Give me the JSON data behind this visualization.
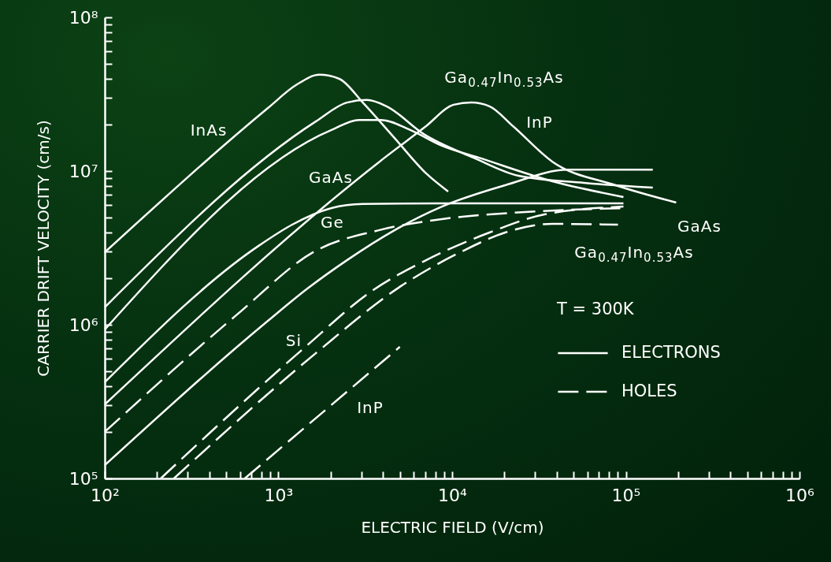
{
  "chart_data": {
    "type": "line",
    "xlabel": "ELECTRIC FIELD (V/cm)",
    "ylabel": "CARRIER DRIFT VELOCITY (cm/s)",
    "legend_title": "T = 300K",
    "legend": "bottom right",
    "log": "xy",
    "xlim": [
      100,
      1000000
    ],
    "ylim": [
      100000,
      100000000
    ],
    "xticks": [
      {
        "value": 100,
        "label": "10²"
      },
      {
        "value": 200,
        "label": null
      },
      {
        "value": 300,
        "label": null
      },
      {
        "value": 400,
        "label": null
      },
      {
        "value": 500,
        "label": null
      },
      {
        "value": 600,
        "label": null
      },
      {
        "value": 700,
        "label": null
      },
      {
        "value": 800,
        "label": null
      },
      {
        "value": 900,
        "label": null
      },
      {
        "value": 1000,
        "label": "10³"
      },
      {
        "value": 2000,
        "label": null
      },
      {
        "value": 3000,
        "label": null
      },
      {
        "value": 4000,
        "label": null
      },
      {
        "value": 5000,
        "label": null
      },
      {
        "value": 6000,
        "label": null
      },
      {
        "value": 7000,
        "label": null
      },
      {
        "value": 8000,
        "label": null
      },
      {
        "value": 9000,
        "label": null
      },
      {
        "value": 10000,
        "label": "10⁴"
      },
      {
        "value": 20000,
        "label": null
      },
      {
        "value": 30000,
        "label": null
      },
      {
        "value": 40000,
        "label": null
      },
      {
        "value": 50000,
        "label": null
      },
      {
        "value": 60000,
        "label": null
      },
      {
        "value": 70000,
        "label": null
      },
      {
        "value": 80000,
        "label": null
      },
      {
        "value": 90000,
        "label": null
      },
      {
        "value": 100000,
        "label": "10⁵"
      },
      {
        "value": 200000,
        "label": null
      },
      {
        "value": 300000,
        "label": null
      },
      {
        "value": 400000,
        "label": null
      },
      {
        "value": 500000,
        "label": null
      },
      {
        "value": 600000,
        "label": null
      },
      {
        "value": 700000,
        "label": null
      },
      {
        "value": 800000,
        "label": null
      },
      {
        "value": 900000,
        "label": null
      },
      {
        "value": 1000000,
        "label": "10⁶"
      }
    ],
    "yticks": [
      {
        "value": 100000,
        "label": "10⁵"
      },
      {
        "value": 200000,
        "label": null
      },
      {
        "value": 300000,
        "label": null
      },
      {
        "value": 400000,
        "label": null
      },
      {
        "value": 500000,
        "label": null
      },
      {
        "value": 600000,
        "label": null
      },
      {
        "value": 700000,
        "label": null
      },
      {
        "value": 800000,
        "label": null
      },
      {
        "value": 900000,
        "label": null
      },
      {
        "value": 1000000,
        "label": "10⁶"
      },
      {
        "value": 2000000,
        "label": null
      },
      {
        "value": 3000000,
        "label": null
      },
      {
        "value": 4000000,
        "label": null
      },
      {
        "value": 5000000,
        "label": null
      },
      {
        "value": 6000000,
        "label": null
      },
      {
        "value": 7000000,
        "label": null
      },
      {
        "value": 8000000,
        "label": null
      },
      {
        "value": 9000000,
        "label": null
      },
      {
        "value": 10000000,
        "label": "10⁷"
      },
      {
        "value": 20000000,
        "label": null
      },
      {
        "value": 30000000,
        "label": null
      },
      {
        "value": 40000000,
        "label": null
      },
      {
        "value": 50000000,
        "label": null
      },
      {
        "value": 60000000,
        "label": null
      },
      {
        "value": 70000000,
        "label": null
      },
      {
        "value": 80000000,
        "label": null
      },
      {
        "value": 90000000,
        "label": null
      },
      {
        "value": 100000000,
        "label": "10⁸"
      }
    ],
    "series": [
      {
        "name": "ELECTRONS",
        "color": "#ffffff",
        "line_style": "solid",
        "x": [
          100,
          870,
          1260,
          1720,
          2240,
          3060,
          4660,
          7080,
          9490
        ],
        "values": [
          2960000,
          25700000,
          36200000,
          42300000,
          39800000,
          27900000,
          16400000,
          9660000,
          7360000
        ]
      },
      {
        "color": "#ffffff",
        "line_style": "solid",
        "x": [
          100,
          1640,
          2480,
          3230,
          4190,
          6860,
          13300,
          24100,
          57400,
          143000
        ],
        "values": [
          1300000,
          21000000,
          27900000,
          29000000,
          26400000,
          17400000,
          12200000,
          9310000,
          8380000,
          7800000
        ]
      },
      {
        "color": "#ffffff",
        "line_style": "solid",
        "x": [
          100,
          2020,
          2910,
          3900,
          5740,
          8730,
          14300,
          37800,
          96900
        ],
        "values": [
          931000,
          18500000,
          21500000,
          21500000,
          18500000,
          14600000,
          12200000,
          8580000,
          6780000
        ]
      },
      {
        "color": "#ffffff",
        "line_style": "solid",
        "x": [
          100,
          790,
          1200,
          2020,
          3060,
          8730,
          96900
        ],
        "values": [
          423000,
          3330000,
          4480000,
          5740000,
          6100000,
          6170000,
          6170000
        ]
      },
      {
        "color": "#ffffff",
        "line_style": "solid",
        "x": [
          100,
          3780,
          7080,
          10200,
          12900,
          16400,
          22400,
          37800,
          87300,
          195000
        ],
        "values": [
          303000,
          11400000,
          19600000,
          27000000,
          27900000,
          26400000,
          19600000,
          11500000,
          8090000,
          6240000
        ]
      },
      {
        "color": "#ffffff",
        "line_style": "solid",
        "x": [
          100,
          870,
          1470,
          2480,
          4660,
          8730,
          20200,
          46600,
          143000
        ],
        "values": [
          122000,
          1060000,
          1720000,
          2630000,
          4120000,
          5870000,
          8090000,
          10200000,
          10200000
        ]
      },
      {
        "name": "HOLES",
        "color": "#ffffff",
        "line_style": "dashed",
        "x": [
          100,
          570,
          1640,
          3780,
          8730,
          22400,
          96900
        ],
        "values": [
          201000,
          1150000,
          3030000,
          4120000,
          4870000,
          5350000,
          5740000
        ]
      },
      {
        "color": "#ffffff",
        "line_style": "dashed",
        "x": [
          210,
          1430,
          3400,
          7080,
          16400,
          34000,
          96900
        ],
        "values": [
          100000,
          718000,
          1640000,
          2630000,
          3980000,
          5220000,
          5870000
        ]
      },
      {
        "color": "#ffffff",
        "line_style": "dashed",
        "x": [
          250,
          1640,
          4910,
          11600,
          20200,
          37800,
          90100
        ],
        "values": [
          100000,
          653000,
          1740000,
          3030000,
          3980000,
          4530000,
          4480000
        ]
      },
      {
        "color": "#ffffff",
        "line_style": "dashed",
        "x": [
          640,
          5000
        ],
        "values": [
          100000,
          718000
        ]
      }
    ],
    "annotations": [
      "InAs",
      "Ga$_{0.47}$In$_{0.53}$As",
      "InP",
      "GaAs",
      "Ge",
      "Si",
      "InP",
      "GaAs",
      "Ga$_{0.47}$In$_{0.53}$As"
    ]
  }
}
